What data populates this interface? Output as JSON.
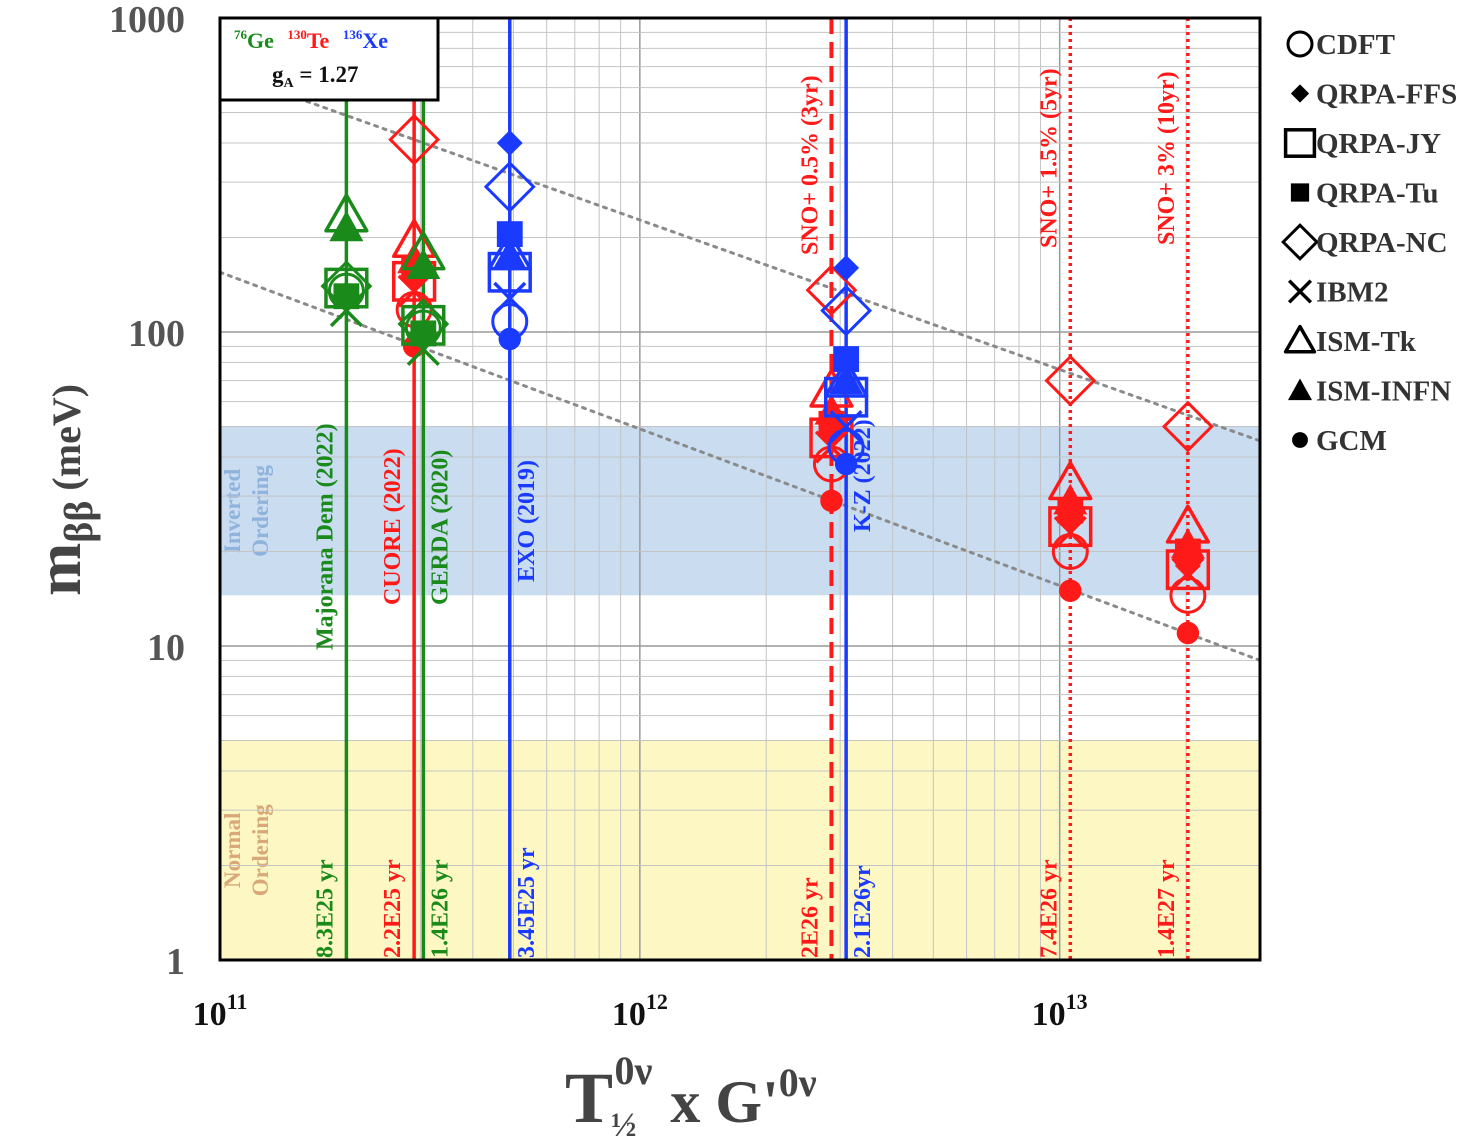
{
  "chart_data": {
    "type": "scatter",
    "title": "",
    "xlabel": "T",
    "xlabel_sub": "½",
    "xlabel_sup": "0ν",
    "xlabel_mid": "x G'",
    "xlabel_sup2": "0ν",
    "ylabel": "m",
    "ylabel_sub": "ββ",
    "ylabel_unit": " (meV)",
    "xscale": "log",
    "yscale": "log",
    "xlim": [
      100000000000.0,
      30000000000000.0
    ],
    "ylim": [
      1,
      1000
    ],
    "grid": true,
    "xtick_labels": [
      {
        "base": "10",
        "exp": "11",
        "value": 100000000000.0
      },
      {
        "base": "10",
        "exp": "12",
        "value": 1000000000000.0
      },
      {
        "base": "10",
        "exp": "13",
        "value": 10000000000000.0
      }
    ],
    "ytick_labels": [
      {
        "label": "1",
        "value": 1
      },
      {
        "label": "10",
        "value": 10
      },
      {
        "label": "100",
        "value": 100
      },
      {
        "label": "1000",
        "value": 1000
      }
    ],
    "info_box": {
      "isotopes": [
        {
          "mass": "76",
          "symbol": "Ge",
          "color": "#1a8a1a"
        },
        {
          "mass": "130",
          "symbol": "Te",
          "color": "#ff1a1a"
        },
        {
          "mass": "136",
          "symbol": "Xe",
          "color": "#1a3aff"
        }
      ],
      "ga_label": "g",
      "ga_sub": "A",
      "ga_value": " = 1.27"
    },
    "bands": [
      {
        "name": "Inverted Ordering",
        "lines": [
          "Inverted",
          "Ordering"
        ],
        "y_range": [
          14.5,
          50
        ],
        "color": "#c9dcf0",
        "text_color": "#8fb3dd"
      },
      {
        "name": "Normal Ordering",
        "lines": [
          "Normal",
          "Ordering"
        ],
        "y_range": [
          1,
          5
        ],
        "color": "#fdf7c3",
        "text_color": "#d9a878"
      }
    ],
    "diagonal_lines": [
      {
        "from": [
          140000000000.0,
          580
        ],
        "to": [
          30000000000000.0,
          45
        ]
      },
      {
        "from": [
          100000000000.0,
          155
        ],
        "to": [
          30000000000000.0,
          9
        ]
      }
    ],
    "experiments": [
      {
        "name": "Majorana Dem (2022)",
        "limit": "8.3E25 yr",
        "x": 200000000000.0,
        "color": "#1a8a1a",
        "style": "solid"
      },
      {
        "name": "CUORE (2022)",
        "limit": "2.2E25 yr",
        "x": 290000000000.0,
        "color": "#ff1a1a",
        "style": "solid"
      },
      {
        "name": "GERDA (2020)",
        "limit": "1.4E26 yr",
        "x": 305000000000.0,
        "color": "#1a8a1a",
        "style": "solid"
      },
      {
        "name": "EXO (2019)",
        "limit": "3.45E25 yr",
        "x": 490000000000.0,
        "color": "#1a3aff",
        "style": "solid"
      },
      {
        "name": "SNO+ 0.5% (3yr)",
        "limit": "2E26 yr",
        "x": 2860000000000.0,
        "color": "#ff1a1a",
        "style": "dashed"
      },
      {
        "name": "K-Z (2022)",
        "limit": "2.1E26yr",
        "x": 3100000000000.0,
        "color": "#1a3aff",
        "style": "solid"
      },
      {
        "name": "SNO+ 1.5% (5yr)",
        "limit": "7.4E26 yr",
        "x": 10600000000000.0,
        "color": "#ff1a1a",
        "style": "dotted"
      },
      {
        "name": "SNO+ 3% (10yr)",
        "limit": "1.4E27 yr",
        "x": 20200000000000.0,
        "color": "#ff1a1a",
        "style": "dotted"
      }
    ],
    "legend": [
      {
        "label": "CDFT",
        "marker": "circle-open"
      },
      {
        "label": "QRPA-FFS",
        "marker": "diamond-filled"
      },
      {
        "label": "QRPA-JY",
        "marker": "square-open"
      },
      {
        "label": "QRPA-Tu",
        "marker": "square-filled"
      },
      {
        "label": "QRPA-NC",
        "marker": "diamond-open"
      },
      {
        "label": "IBM2",
        "marker": "cross"
      },
      {
        "label": "ISM-Tk",
        "marker": "triangle-open"
      },
      {
        "label": "ISM-INFN",
        "marker": "triangle-filled"
      },
      {
        "label": "GCM",
        "marker": "circle-filled"
      }
    ],
    "series": [
      {
        "experiment": "Majorana Dem (2022)",
        "isotope": "Ge",
        "x": 200000000000.0,
        "color": "#1a8a1a",
        "values": {
          "CDFT": 135,
          "QRPA-FFS": 132,
          "QRPA-JY": 138,
          "QRPA-Tu": 130,
          "QRPA-NC": 140,
          "IBM2": 117,
          "ISM-Tk": 235,
          "ISM-INFN": 215,
          "GCM": 128
        }
      },
      {
        "experiment": "CUORE (2022)",
        "isotope": "Te",
        "x": 290000000000.0,
        "color": "#ff1a1a",
        "values": {
          "CDFT": 118,
          "QRPA-FFS": 148,
          "QRPA-JY": 145,
          "QRPA-Tu": 160,
          "QRPA-NC": 410,
          "IBM2": 135,
          "ISM-Tk": 195,
          "ISM-INFN": 170,
          "GCM": 90
        }
      },
      {
        "experiment": "GERDA (2020)",
        "isotope": "Ge",
        "x": 305000000000.0,
        "color": "#1a8a1a",
        "values": {
          "CDFT": 103,
          "QRPA-FFS": 100,
          "QRPA-JY": 105,
          "QRPA-Tu": 99,
          "QRPA-NC": 106,
          "IBM2": 88,
          "ISM-Tk": 178,
          "ISM-INFN": 163,
          "GCM": 97
        }
      },
      {
        "experiment": "EXO (2019)",
        "isotope": "Xe",
        "x": 490000000000.0,
        "color": "#1a3aff",
        "values": {
          "CDFT": 108,
          "QRPA-FFS": 400,
          "QRPA-JY": 155,
          "QRPA-Tu": 205,
          "QRPA-NC": 290,
          "IBM2": 128,
          "ISM-Tk": 178,
          "ISM-INFN": 175,
          "GCM": 95
        }
      },
      {
        "experiment": "SNO+ 0.5% (3yr)",
        "isotope": "Te",
        "x": 2860000000000.0,
        "color": "#ff1a1a",
        "values": {
          "CDFT": 38,
          "QRPA-FFS": 47,
          "QRPA-JY": 46,
          "QRPA-Tu": 51,
          "QRPA-NC": 136,
          "IBM2": 43,
          "ISM-Tk": 65,
          "ISM-INFN": 56,
          "GCM": 29
        }
      },
      {
        "experiment": "K-Z (2022)",
        "isotope": "Xe",
        "x": 3100000000000.0,
        "color": "#1a3aff",
        "values": {
          "CDFT": 43,
          "QRPA-FFS": 160,
          "QRPA-JY": 62,
          "QRPA-Tu": 82,
          "QRPA-NC": 117,
          "IBM2": 50,
          "ISM-Tk": 70,
          "ISM-INFN": 70,
          "GCM": 38
        }
      },
      {
        "experiment": "SNO+ 1.5% (5yr)",
        "isotope": "Te",
        "x": 10600000000000.0,
        "color": "#ff1a1a",
        "values": {
          "CDFT": 20,
          "QRPA-FFS": 25,
          "QRPA-JY": 24,
          "QRPA-Tu": 27,
          "QRPA-NC": 70,
          "IBM2": 23,
          "ISM-Tk": 33,
          "ISM-INFN": 29,
          "GCM": 15
        }
      },
      {
        "experiment": "SNO+ 3% (10yr)",
        "isotope": "Te",
        "x": 20200000000000.0,
        "color": "#ff1a1a",
        "values": {
          "CDFT": 14.5,
          "QRPA-FFS": 18,
          "QRPA-JY": 17.5,
          "QRPA-Tu": 20,
          "QRPA-NC": 50,
          "IBM2": 17,
          "ISM-Tk": 24,
          "ISM-INFN": 21,
          "GCM": 11
        }
      }
    ]
  }
}
